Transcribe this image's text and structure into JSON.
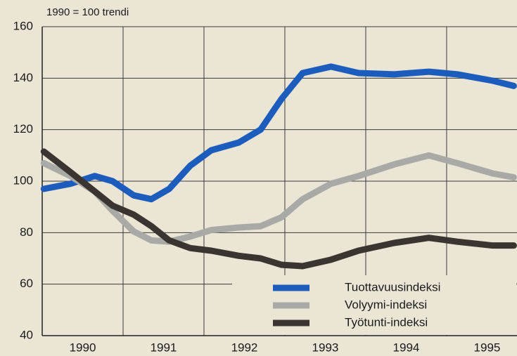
{
  "chart_data": {
    "type": "line",
    "annotation": "1990 = 100 trendi",
    "x": [
      1990.02,
      1990.35,
      1990.65,
      1990.87,
      1991.13,
      1991.35,
      1991.57,
      1991.83,
      1992.09,
      1992.43,
      1992.7,
      1992.96,
      1993.22,
      1993.57,
      1993.91,
      1994.35,
      1994.78,
      1995.13,
      1995.57,
      1995.83
    ],
    "series": [
      {
        "name": "Tuottavuusindeksi",
        "color": "#1c5cbd",
        "values": [
          97,
          99,
          102,
          100,
          94.5,
          93,
          97,
          106,
          112,
          115,
          120,
          132,
          142,
          144.5,
          142,
          141.5,
          142.5,
          141.5,
          139,
          137
        ]
      },
      {
        "name": "Volyymi-indeksi",
        "color": "#a9a9a6",
        "values": [
          107,
          102,
          96,
          88.5,
          80.5,
          77,
          76.5,
          78.5,
          81,
          82,
          82.5,
          86,
          93,
          99,
          102,
          106.5,
          110,
          107,
          103,
          101.5
        ]
      },
      {
        "name": "Työtunti-indeksi",
        "color": "#3a3531",
        "values": [
          111.5,
          103.5,
          96,
          90.5,
          87,
          82.5,
          77,
          74,
          73,
          71,
          70,
          67.5,
          67,
          69.5,
          73,
          76,
          78,
          76.5,
          75,
          75
        ]
      }
    ],
    "xlim": [
      1990,
      1995.87
    ],
    "xticks": [
      {
        "value": 1990.5,
        "label": "1990"
      },
      {
        "value": 1991.5,
        "label": "1991"
      },
      {
        "value": 1992.5,
        "label": "1992"
      },
      {
        "value": 1993.5,
        "label": "1993"
      },
      {
        "value": 1994.5,
        "label": "1994"
      },
      {
        "value": 1995.5,
        "label": "1995"
      }
    ],
    "ylim": [
      40,
      160
    ],
    "yticks": [
      40,
      60,
      80,
      100,
      120,
      140,
      160
    ],
    "grid": true,
    "legend": "lower right"
  }
}
